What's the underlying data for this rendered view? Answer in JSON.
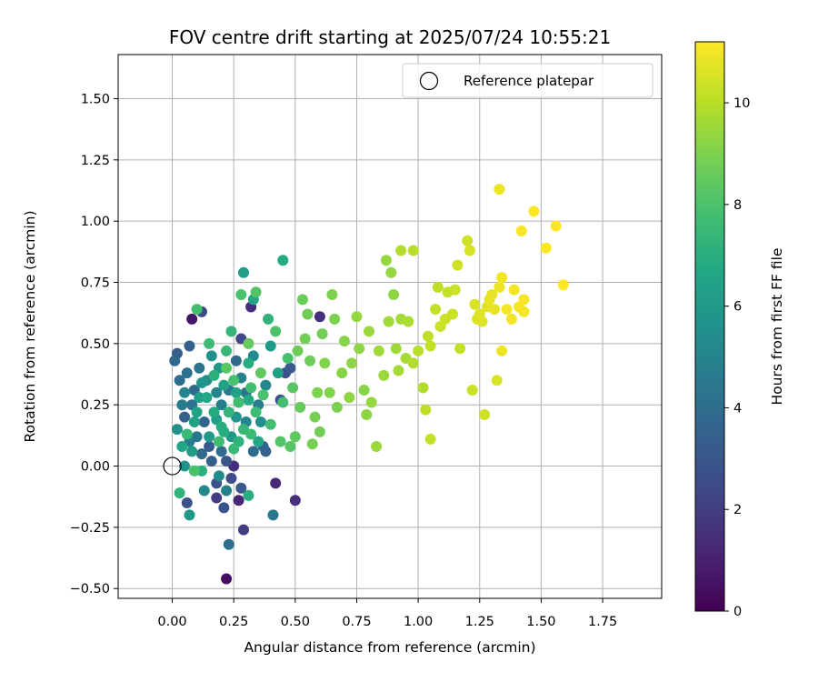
{
  "chart_data": {
    "type": "scatter",
    "title": "FOV centre drift starting at 2025/07/24 10:55:21",
    "xlabel": "Angular distance from reference (arcmin)",
    "ylabel": "Rotation from reference (arcmin)",
    "xlim": [
      -0.22,
      1.99
    ],
    "ylim": [
      -0.54,
      1.68
    ],
    "xticks": [
      "0.00",
      "0.25",
      "0.50",
      "0.75",
      "1.00",
      "1.25",
      "1.50",
      "1.75"
    ],
    "yticks": [
      "−0.50",
      "−0.25",
      "0.00",
      "0.25",
      "0.50",
      "0.75",
      "1.00",
      "1.25",
      "1.50"
    ],
    "grid": true,
    "legend": {
      "placement": "top-right",
      "entries": [
        "Reference platepar"
      ]
    },
    "colorbar": {
      "label": "Hours from first FF file",
      "range": [
        0,
        11.2
      ],
      "ticks": [
        "0",
        "2",
        "4",
        "6",
        "8",
        "10"
      ],
      "colormap": "viridis"
    },
    "reference_point": {
      "x": 0.0,
      "y": 0.0,
      "label": "Reference platepar"
    },
    "points": [
      {
        "x": 0.22,
        "y": -0.46,
        "c": 0.4
      },
      {
        "x": 0.08,
        "y": 0.6,
        "c": 0.6
      },
      {
        "x": 0.5,
        "y": -0.14,
        "c": 1.5
      },
      {
        "x": 0.6,
        "y": 0.61,
        "c": 1.5
      },
      {
        "x": 0.42,
        "y": -0.07,
        "c": 1.3
      },
      {
        "x": 0.29,
        "y": -0.26,
        "c": 2.0
      },
      {
        "x": 0.27,
        "y": -0.14,
        "c": 1.2
      },
      {
        "x": 0.25,
        "y": 0.0,
        "c": 1.5
      },
      {
        "x": 0.32,
        "y": 0.65,
        "c": 1.4
      },
      {
        "x": 0.12,
        "y": 0.63,
        "c": 2.5
      },
      {
        "x": 0.06,
        "y": -0.15,
        "c": 2.8
      },
      {
        "x": 0.21,
        "y": -0.17,
        "c": 3.0
      },
      {
        "x": 0.18,
        "y": -0.13,
        "c": 2.0
      },
      {
        "x": 0.23,
        "y": -0.32,
        "c": 4.0
      },
      {
        "x": 0.41,
        "y": -0.2,
        "c": 4.4
      },
      {
        "x": 0.07,
        "y": 0.49,
        "c": 3.4
      },
      {
        "x": 0.02,
        "y": 0.46,
        "c": 3.3
      },
      {
        "x": 0.01,
        "y": 0.43,
        "c": 3.7
      },
      {
        "x": 0.03,
        "y": 0.35,
        "c": 4.0
      },
      {
        "x": 0.05,
        "y": 0.2,
        "c": 3.5
      },
      {
        "x": 0.08,
        "y": 0.25,
        "c": 4.2
      },
      {
        "x": 0.1,
        "y": 0.12,
        "c": 4.5
      },
      {
        "x": 0.12,
        "y": 0.05,
        "c": 3.8
      },
      {
        "x": 0.15,
        "y": 0.08,
        "c": 3.2
      },
      {
        "x": 0.18,
        "y": 0.3,
        "c": 5.0
      },
      {
        "x": 0.2,
        "y": 0.25,
        "c": 4.8
      },
      {
        "x": 0.22,
        "y": 0.02,
        "c": 3.0
      },
      {
        "x": 0.24,
        "y": -0.05,
        "c": 2.6
      },
      {
        "x": 0.28,
        "y": 0.52,
        "c": 2.4
      },
      {
        "x": 0.33,
        "y": 0.06,
        "c": 3.9
      },
      {
        "x": 0.37,
        "y": 0.08,
        "c": 3.6
      },
      {
        "x": 0.44,
        "y": 0.27,
        "c": 2.8
      },
      {
        "x": 0.46,
        "y": 0.38,
        "c": 2.7
      },
      {
        "x": 0.48,
        "y": 0.4,
        "c": 3.1
      },
      {
        "x": 0.3,
        "y": 0.3,
        "c": 4.3
      },
      {
        "x": 0.35,
        "y": 0.25,
        "c": 4.6
      },
      {
        "x": 0.38,
        "y": 0.33,
        "c": 5.2
      },
      {
        "x": 0.14,
        "y": 0.35,
        "c": 5.4
      },
      {
        "x": 0.16,
        "y": 0.45,
        "c": 5.6
      },
      {
        "x": 0.19,
        "y": 0.4,
        "c": 5.9
      },
      {
        "x": 0.13,
        "y": -0.1,
        "c": 5.2
      },
      {
        "x": 0.07,
        "y": -0.2,
        "c": 6.0
      },
      {
        "x": 0.26,
        "y": 0.2,
        "c": 5.8
      },
      {
        "x": 0.29,
        "y": 0.79,
        "c": 6.2
      },
      {
        "x": 0.45,
        "y": 0.84,
        "c": 6.8
      },
      {
        "x": 0.33,
        "y": 0.68,
        "c": 6.6
      },
      {
        "x": 0.39,
        "y": 0.6,
        "c": 7.2
      },
      {
        "x": 0.24,
        "y": 0.55,
        "c": 7.3
      },
      {
        "x": 0.31,
        "y": 0.42,
        "c": 6.9
      },
      {
        "x": 0.22,
        "y": 0.47,
        "c": 7.4
      },
      {
        "x": 0.04,
        "y": 0.08,
        "c": 6.6
      },
      {
        "x": 0.09,
        "y": 0.18,
        "c": 6.4
      },
      {
        "x": 0.11,
        "y": 0.28,
        "c": 6.2
      },
      {
        "x": 0.17,
        "y": 0.22,
        "c": 6.8
      },
      {
        "x": 0.21,
        "y": 0.14,
        "c": 7.0
      },
      {
        "x": 0.27,
        "y": 0.1,
        "c": 7.2
      },
      {
        "x": 0.12,
        "y": -0.02,
        "c": 7.0
      },
      {
        "x": 0.15,
        "y": 0.5,
        "c": 7.6
      },
      {
        "x": 0.03,
        "y": -0.11,
        "c": 7.2
      },
      {
        "x": 0.1,
        "y": 0.64,
        "c": 7.8
      },
      {
        "x": 0.28,
        "y": 0.7,
        "c": 8.0
      },
      {
        "x": 0.34,
        "y": 0.71,
        "c": 8.1
      },
      {
        "x": 0.42,
        "y": 0.55,
        "c": 8.0
      },
      {
        "x": 0.47,
        "y": 0.44,
        "c": 7.9
      },
      {
        "x": 0.45,
        "y": 0.26,
        "c": 7.8
      },
      {
        "x": 0.48,
        "y": 0.08,
        "c": 8.2
      },
      {
        "x": 0.5,
        "y": 0.12,
        "c": 8.4
      },
      {
        "x": 0.32,
        "y": 0.13,
        "c": 7.6
      },
      {
        "x": 0.25,
        "y": 0.35,
        "c": 7.9
      },
      {
        "x": 0.19,
        "y": 0.1,
        "c": 7.7
      },
      {
        "x": 0.06,
        "y": 0.13,
        "c": 7.5
      },
      {
        "x": 0.09,
        "y": -0.02,
        "c": 7.9
      },
      {
        "x": 0.22,
        "y": 0.4,
        "c": 8.3
      },
      {
        "x": 0.31,
        "y": 0.5,
        "c": 8.5
      },
      {
        "x": 0.36,
        "y": 0.38,
        "c": 8.4
      },
      {
        "x": 0.53,
        "y": 0.68,
        "c": 8.6
      },
      {
        "x": 0.55,
        "y": 0.62,
        "c": 8.7
      },
      {
        "x": 0.51,
        "y": 0.47,
        "c": 8.7
      },
      {
        "x": 0.54,
        "y": 0.52,
        "c": 8.8
      },
      {
        "x": 0.6,
        "y": 0.14,
        "c": 8.8
      },
      {
        "x": 0.57,
        "y": 0.09,
        "c": 8.9
      },
      {
        "x": 0.59,
        "y": 0.3,
        "c": 9.0
      },
      {
        "x": 0.66,
        "y": 0.6,
        "c": 9.0
      },
      {
        "x": 0.65,
        "y": 0.7,
        "c": 9.0
      },
      {
        "x": 0.62,
        "y": 0.42,
        "c": 9.1
      },
      {
        "x": 0.64,
        "y": 0.3,
        "c": 9.1
      },
      {
        "x": 0.7,
        "y": 0.51,
        "c": 9.2
      },
      {
        "x": 0.73,
        "y": 0.42,
        "c": 9.3
      },
      {
        "x": 0.78,
        "y": 0.31,
        "c": 9.2
      },
      {
        "x": 0.79,
        "y": 0.21,
        "c": 9.3
      },
      {
        "x": 0.81,
        "y": 0.26,
        "c": 9.4
      },
      {
        "x": 0.83,
        "y": 0.08,
        "c": 9.5
      },
      {
        "x": 0.87,
        "y": 0.84,
        "c": 9.4
      },
      {
        "x": 0.89,
        "y": 0.79,
        "c": 9.4
      },
      {
        "x": 0.9,
        "y": 0.7,
        "c": 9.3
      },
      {
        "x": 0.86,
        "y": 0.37,
        "c": 9.5
      },
      {
        "x": 0.88,
        "y": 0.59,
        "c": 9.6
      },
      {
        "x": 0.91,
        "y": 0.48,
        "c": 9.6
      },
      {
        "x": 0.93,
        "y": 0.6,
        "c": 9.7
      },
      {
        "x": 0.95,
        "y": 0.44,
        "c": 9.7
      },
      {
        "x": 0.92,
        "y": 0.39,
        "c": 9.7
      },
      {
        "x": 0.93,
        "y": 0.88,
        "c": 9.9
      },
      {
        "x": 0.98,
        "y": 0.88,
        "c": 10.0
      },
      {
        "x": 0.98,
        "y": 0.42,
        "c": 9.9
      },
      {
        "x": 1.02,
        "y": 0.32,
        "c": 9.9
      },
      {
        "x": 1.03,
        "y": 0.23,
        "c": 10.1
      },
      {
        "x": 1.05,
        "y": 0.11,
        "c": 10.2
      },
      {
        "x": 1.04,
        "y": 0.53,
        "c": 10.1
      },
      {
        "x": 1.05,
        "y": 0.49,
        "c": 10.2
      },
      {
        "x": 1.08,
        "y": 0.73,
        "c": 10.1
      },
      {
        "x": 1.09,
        "y": 0.57,
        "c": 10.3
      },
      {
        "x": 1.11,
        "y": 0.6,
        "c": 10.3
      },
      {
        "x": 1.12,
        "y": 0.71,
        "c": 10.2
      },
      {
        "x": 1.15,
        "y": 0.72,
        "c": 10.3
      },
      {
        "x": 1.16,
        "y": 0.82,
        "c": 10.4
      },
      {
        "x": 1.17,
        "y": 0.48,
        "c": 10.2
      },
      {
        "x": 1.2,
        "y": 0.92,
        "c": 10.4
      },
      {
        "x": 1.21,
        "y": 0.88,
        "c": 10.5
      },
      {
        "x": 1.22,
        "y": 0.31,
        "c": 10.3
      },
      {
        "x": 1.23,
        "y": 0.66,
        "c": 10.6
      },
      {
        "x": 1.24,
        "y": 0.6,
        "c": 10.6
      },
      {
        "x": 1.25,
        "y": 0.62,
        "c": 10.7
      },
      {
        "x": 1.27,
        "y": 0.21,
        "c": 10.4
      },
      {
        "x": 1.28,
        "y": 0.65,
        "c": 10.7
      },
      {
        "x": 1.3,
        "y": 0.7,
        "c": 10.8
      },
      {
        "x": 1.31,
        "y": 0.64,
        "c": 10.8
      },
      {
        "x": 1.32,
        "y": 0.35,
        "c": 10.6
      },
      {
        "x": 1.33,
        "y": 0.73,
        "c": 10.9
      },
      {
        "x": 1.34,
        "y": 0.77,
        "c": 11.0
      },
      {
        "x": 1.34,
        "y": 0.47,
        "c": 10.9
      },
      {
        "x": 1.33,
        "y": 1.13,
        "c": 10.9
      },
      {
        "x": 1.36,
        "y": 0.64,
        "c": 11.0
      },
      {
        "x": 1.38,
        "y": 0.6,
        "c": 11.0
      },
      {
        "x": 1.39,
        "y": 0.72,
        "c": 11.0
      },
      {
        "x": 1.42,
        "y": 0.96,
        "c": 11.1
      },
      {
        "x": 1.43,
        "y": 0.68,
        "c": 11.1
      },
      {
        "x": 1.43,
        "y": 0.63,
        "c": 11.1
      },
      {
        "x": 1.47,
        "y": 1.04,
        "c": 11.2
      },
      {
        "x": 1.52,
        "y": 0.89,
        "c": 11.2
      },
      {
        "x": 1.56,
        "y": 0.98,
        "c": 11.2
      },
      {
        "x": 1.59,
        "y": 0.74,
        "c": 11.2
      },
      {
        "x": 0.04,
        "y": 0.25,
        "c": 4.6
      },
      {
        "x": 0.06,
        "y": 0.38,
        "c": 4.1
      },
      {
        "x": 0.09,
        "y": 0.31,
        "c": 3.9
      },
      {
        "x": 0.11,
        "y": 0.4,
        "c": 4.3
      },
      {
        "x": 0.13,
        "y": 0.18,
        "c": 3.6
      },
      {
        "x": 0.16,
        "y": 0.02,
        "c": 3.3
      },
      {
        "x": 0.18,
        "y": -0.07,
        "c": 2.9
      },
      {
        "x": 0.2,
        "y": 0.06,
        "c": 4.0
      },
      {
        "x": 0.23,
        "y": 0.31,
        "c": 4.4
      },
      {
        "x": 0.26,
        "y": 0.43,
        "c": 3.8
      },
      {
        "x": 0.28,
        "y": 0.36,
        "c": 4.9
      },
      {
        "x": 0.3,
        "y": 0.18,
        "c": 5.1
      },
      {
        "x": 0.33,
        "y": 0.45,
        "c": 5.3
      },
      {
        "x": 0.36,
        "y": 0.18,
        "c": 5.5
      },
      {
        "x": 0.38,
        "y": 0.06,
        "c": 3.4
      },
      {
        "x": 0.4,
        "y": 0.49,
        "c": 6.0
      },
      {
        "x": 0.43,
        "y": 0.38,
        "c": 6.3
      },
      {
        "x": 0.05,
        "y": 0.0,
        "c": 5.7
      },
      {
        "x": 0.08,
        "y": 0.06,
        "c": 6.1
      },
      {
        "x": 0.1,
        "y": 0.22,
        "c": 6.5
      },
      {
        "x": 0.14,
        "y": 0.28,
        "c": 6.7
      },
      {
        "x": 0.17,
        "y": 0.37,
        "c": 7.1
      },
      {
        "x": 0.2,
        "y": 0.16,
        "c": 6.9
      },
      {
        "x": 0.23,
        "y": 0.22,
        "c": 7.3
      },
      {
        "x": 0.25,
        "y": 0.07,
        "c": 7.5
      },
      {
        "x": 0.27,
        "y": 0.26,
        "c": 7.7
      },
      {
        "x": 0.29,
        "y": 0.15,
        "c": 7.4
      },
      {
        "x": 0.32,
        "y": 0.32,
        "c": 7.8
      },
      {
        "x": 0.34,
        "y": 0.22,
        "c": 7.6
      },
      {
        "x": 0.37,
        "y": 0.29,
        "c": 8.0
      },
      {
        "x": 0.4,
        "y": 0.17,
        "c": 7.8
      },
      {
        "x": 0.44,
        "y": 0.1,
        "c": 8.1
      },
      {
        "x": 0.49,
        "y": 0.32,
        "c": 8.3
      },
      {
        "x": 0.52,
        "y": 0.24,
        "c": 8.5
      },
      {
        "x": 0.56,
        "y": 0.43,
        "c": 8.7
      },
      {
        "x": 0.58,
        "y": 0.2,
        "c": 8.9
      },
      {
        "x": 0.61,
        "y": 0.54,
        "c": 8.8
      },
      {
        "x": 0.67,
        "y": 0.24,
        "c": 9.0
      },
      {
        "x": 0.69,
        "y": 0.38,
        "c": 9.2
      },
      {
        "x": 0.72,
        "y": 0.28,
        "c": 9.3
      },
      {
        "x": 0.75,
        "y": 0.61,
        "c": 9.4
      },
      {
        "x": 0.76,
        "y": 0.48,
        "c": 9.3
      },
      {
        "x": 0.8,
        "y": 0.55,
        "c": 9.5
      },
      {
        "x": 0.84,
        "y": 0.47,
        "c": 9.6
      },
      {
        "x": 0.96,
        "y": 0.59,
        "c": 9.8
      },
      {
        "x": 1.0,
        "y": 0.47,
        "c": 10.0
      },
      {
        "x": 1.07,
        "y": 0.64,
        "c": 10.2
      },
      {
        "x": 1.14,
        "y": 0.62,
        "c": 10.3
      },
      {
        "x": 1.26,
        "y": 0.59,
        "c": 10.6
      },
      {
        "x": 1.29,
        "y": 0.68,
        "c": 10.8
      },
      {
        "x": 1.41,
        "y": 0.65,
        "c": 11.1
      },
      {
        "x": 0.02,
        "y": 0.15,
        "c": 5.6
      },
      {
        "x": 0.05,
        "y": 0.3,
        "c": 5.0
      },
      {
        "x": 0.07,
        "y": 0.1,
        "c": 4.7
      },
      {
        "x": 0.12,
        "y": 0.34,
        "c": 5.8
      },
      {
        "x": 0.15,
        "y": 0.12,
        "c": 6.0
      },
      {
        "x": 0.18,
        "y": 0.19,
        "c": 6.3
      },
      {
        "x": 0.21,
        "y": 0.33,
        "c": 6.5
      },
      {
        "x": 0.24,
        "y": 0.12,
        "c": 5.9
      },
      {
        "x": 0.26,
        "y": 0.3,
        "c": 6.4
      },
      {
        "x": 0.31,
        "y": 0.27,
        "c": 6.8
      },
      {
        "x": 0.35,
        "y": 0.1,
        "c": 6.6
      },
      {
        "x": 0.22,
        "y": -0.1,
        "c": 4.9
      },
      {
        "x": 0.19,
        "y": -0.04,
        "c": 5.3
      },
      {
        "x": 0.28,
        "y": -0.09,
        "c": 3.1
      },
      {
        "x": 0.31,
        "y": -0.12,
        "c": 7.0
      }
    ]
  }
}
